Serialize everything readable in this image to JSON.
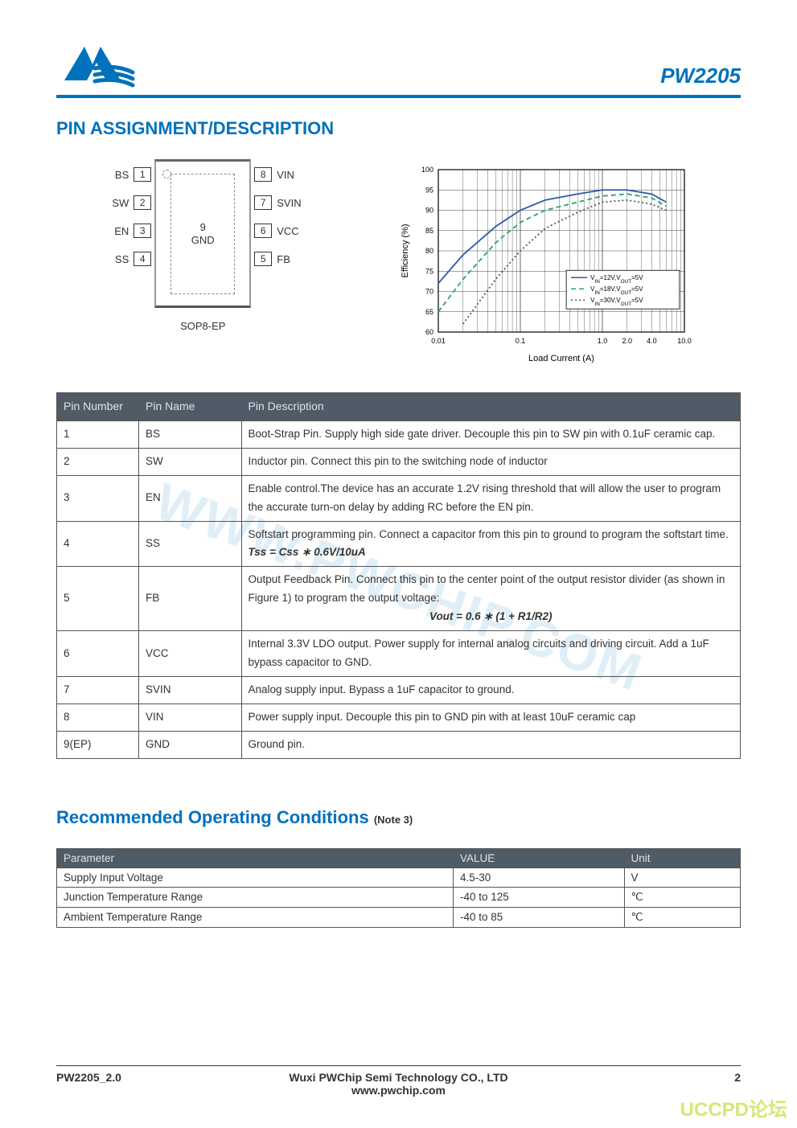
{
  "header": {
    "part_number": "PW2205",
    "logo_color": "#0072bc"
  },
  "section1_title": "PIN ASSIGNMENT/DESCRIPTION",
  "package": {
    "name": "SOP8-EP",
    "center_number": "9",
    "center_name": "GND",
    "left_pins": [
      {
        "label": "BS",
        "num": "1"
      },
      {
        "label": "SW",
        "num": "2"
      },
      {
        "label": "EN",
        "num": "3"
      },
      {
        "label": "SS",
        "num": "4"
      }
    ],
    "right_pins": [
      {
        "label": "VIN",
        "num": "8"
      },
      {
        "label": "SVIN",
        "num": "7"
      },
      {
        "label": "VCC",
        "num": "6"
      },
      {
        "label": "FB",
        "num": "5"
      }
    ]
  },
  "chart": {
    "type": "line",
    "xlabel": "Load Current (A)",
    "ylabel": "Efficiency (%)",
    "label_fontsize": 11,
    "tick_fontsize": 9,
    "xscale": "log",
    "xlim": [
      0.01,
      10.0
    ],
    "ylim": [
      60,
      100
    ],
    "ytick_step": 5,
    "xticks": [
      "0.01",
      "0.1",
      "1.0",
      "2.0",
      "4.0",
      "10.0"
    ],
    "grid_color": "#444444",
    "background": "#ffffff",
    "legend_items": [
      "V_IN=12V,V_OUT=5V",
      "V_IN=18V,V_OUT=5V",
      "V_IN=30V,V_OUT=5V"
    ],
    "legend_fontsize": 8,
    "series": [
      {
        "name": "V_IN=12V,V_OUT=5V",
        "color": "#2e5aa8",
        "dash": "solid",
        "points": [
          {
            "x": 0.01,
            "y": 72
          },
          {
            "x": 0.02,
            "y": 79
          },
          {
            "x": 0.05,
            "y": 86
          },
          {
            "x": 0.1,
            "y": 90
          },
          {
            "x": 0.2,
            "y": 92.5
          },
          {
            "x": 0.5,
            "y": 94
          },
          {
            "x": 1.0,
            "y": 95
          },
          {
            "x": 2.0,
            "y": 95
          },
          {
            "x": 4.0,
            "y": 94
          },
          {
            "x": 6.0,
            "y": 92
          }
        ]
      },
      {
        "name": "V_IN=18V,V_OUT=5V",
        "color": "#2aa36b",
        "dash": "dashed",
        "points": [
          {
            "x": 0.01,
            "y": 65
          },
          {
            "x": 0.02,
            "y": 73
          },
          {
            "x": 0.05,
            "y": 82
          },
          {
            "x": 0.1,
            "y": 87
          },
          {
            "x": 0.2,
            "y": 90
          },
          {
            "x": 0.5,
            "y": 92
          },
          {
            "x": 1.0,
            "y": 93.5
          },
          {
            "x": 2.0,
            "y": 94
          },
          {
            "x": 4.0,
            "y": 93
          },
          {
            "x": 6.0,
            "y": 91
          }
        ]
      },
      {
        "name": "V_IN=30V,V_OUT=5V",
        "color": "#555555",
        "dash": "dotted",
        "points": [
          {
            "x": 0.02,
            "y": 62
          },
          {
            "x": 0.05,
            "y": 73
          },
          {
            "x": 0.1,
            "y": 80
          },
          {
            "x": 0.2,
            "y": 85.5
          },
          {
            "x": 0.5,
            "y": 89.5
          },
          {
            "x": 1.0,
            "y": 92
          },
          {
            "x": 2.0,
            "y": 92.5
          },
          {
            "x": 4.0,
            "y": 91.5
          },
          {
            "x": 6.0,
            "y": 90
          }
        ]
      }
    ]
  },
  "pin_table": {
    "headers": [
      "Pin Number",
      "Pin Name",
      "Pin Description"
    ],
    "rows": [
      {
        "num": "1",
        "name": "BS",
        "desc": "Boot-Strap Pin. Supply high side gate driver. Decouple this pin to SW pin with 0.1uF ceramic cap."
      },
      {
        "num": "2",
        "name": "SW",
        "desc": "Inductor pin. Connect this pin to the switching node of inductor"
      },
      {
        "num": "3",
        "name": "EN",
        "desc": "Enable control.The device has an accurate 1.2V rising threshold that will allow the user to program the accurate turn-on delay by adding RC before the EN pin."
      },
      {
        "num": "4",
        "name": "SS",
        "desc": "Softstart programming pin. Connect a capacitor from this pin to ground to program the softstart time.",
        "formula": "Tss = Css ∗ 0.6V/10uA"
      },
      {
        "num": "5",
        "name": "FB",
        "desc": "Output Feedback Pin. Connect this pin to the center point of the output resistor divider (as shown in Figure 1) to program the output voltage:",
        "formula_center": "Vout = 0.6 ∗ (1 + R1/R2)"
      },
      {
        "num": "6",
        "name": "VCC",
        "desc": "Internal 3.3V LDO output. Power supply for internal analog circuits and driving circuit. Add a 1uF bypass capacitor to GND."
      },
      {
        "num": "7",
        "name": "SVIN",
        "desc": "Analog supply input. Bypass a 1uF capacitor to ground."
      },
      {
        "num": "8",
        "name": "VIN",
        "desc": "Power supply input. Decouple this pin to GND pin with at least 10uF ceramic cap"
      },
      {
        "num": "9(EP)",
        "name": "GND",
        "desc": "Ground pin."
      }
    ]
  },
  "section2_title": "Recommended Operating Conditions",
  "section2_note": "(Note 3)",
  "op_table": {
    "headers": [
      "Parameter",
      "VALUE",
      "Unit"
    ],
    "rows": [
      {
        "param": "Supply Input Voltage",
        "value": "4.5-30",
        "unit": "V"
      },
      {
        "param": "Junction Temperature Range",
        "value": "-40 to 125",
        "unit": "℃"
      },
      {
        "param": "Ambient Temperature Range",
        "value": "-40 to 85",
        "unit": "℃"
      }
    ]
  },
  "footer": {
    "doc_version": "PW2205_2.0",
    "company": "Wuxi PWChip Semi Technology CO., LTD",
    "url": "www.pwchip.com",
    "page_number": "2"
  },
  "watermark": "WWW.PWCHIP.COM",
  "forum_mark": "UCCPD论坛"
}
